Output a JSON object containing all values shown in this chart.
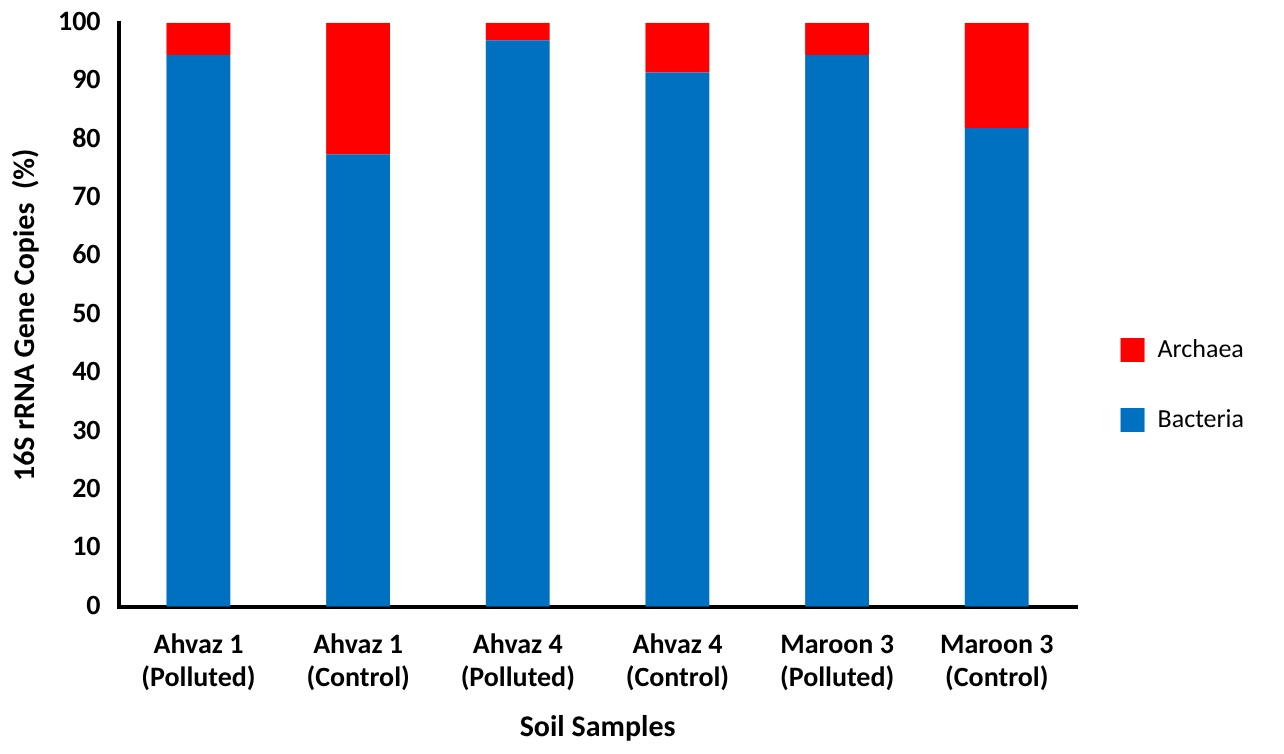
{
  "chart_data": {
    "type": "bar",
    "stacked": true,
    "xlabel": "Soil Samples",
    "ylabel": "16S rRNA Gene Copies  (%)",
    "categories": [
      "Ahvaz 1\n(Polluted)",
      "Ahvaz 1\n(Control)",
      "Ahvaz 4\n(Polluted)",
      "Ahvaz 4\n(Control)",
      "Maroon 3\n(Polluted)",
      "Maroon 3\n(Control)"
    ],
    "series": [
      {
        "name": "Bacteria",
        "color": "#0070c0",
        "values": [
          94.5,
          77.5,
          97,
          91.5,
          94.5,
          82
        ]
      },
      {
        "name": "Archaea",
        "color": "#ff0000",
        "values": [
          5.5,
          22.5,
          3,
          8.5,
          5.5,
          18
        ]
      }
    ],
    "ylim": [
      0,
      100
    ],
    "yticks": [
      0,
      10,
      20,
      30,
      40,
      50,
      60,
      70,
      80,
      90,
      100
    ],
    "grid": false,
    "legend": "right"
  }
}
